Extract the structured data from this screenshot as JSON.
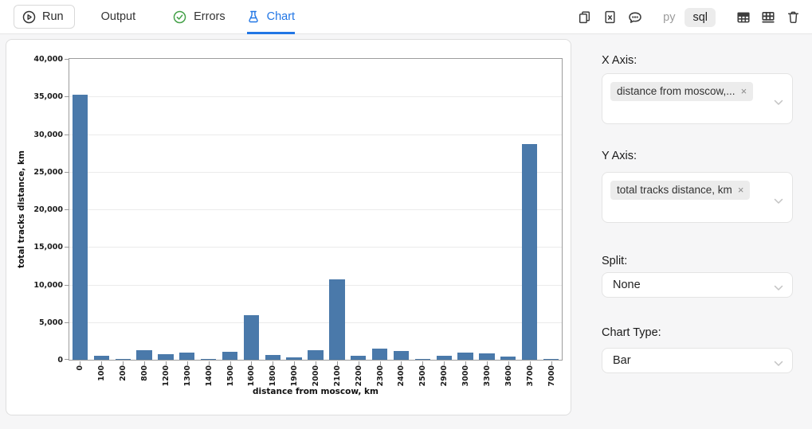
{
  "toolbar": {
    "run": "Run",
    "tabs": {
      "output": "Output",
      "errors": "Errors",
      "chart": "Chart"
    },
    "lang": {
      "py": "py",
      "sql": "sql",
      "active": "sql"
    },
    "icons": [
      "copy-icon",
      "file-x-icon",
      "comment-icon",
      "table-header-icon",
      "table-grid-icon",
      "trash-icon"
    ]
  },
  "sidebar": {
    "x_axis_label": "X Axis:",
    "x_axis_tag": "distance from moscow,...",
    "y_axis_label": "Y Axis:",
    "y_axis_tag": "total tracks distance, km",
    "tag_remove": "×",
    "split_label": "Split:",
    "split_value": "None",
    "chart_type_label": "Chart Type:",
    "chart_type_value": "Bar"
  },
  "chart_data": {
    "type": "bar",
    "title": "",
    "xlabel": "distance from moscow, km",
    "ylabel": "total tracks distance, km",
    "categories": [
      "0",
      "100",
      "200",
      "800",
      "1200",
      "1300",
      "1400",
      "1500",
      "1600",
      "1800",
      "1900",
      "2000",
      "2100",
      "2200",
      "2300",
      "2400",
      "2500",
      "2900",
      "3000",
      "3300",
      "3600",
      "3700",
      "7000"
    ],
    "values": [
      35200,
      550,
      30,
      1250,
      750,
      1000,
      100,
      1100,
      5900,
      600,
      300,
      1300,
      10650,
      550,
      1500,
      1150,
      150,
      550,
      950,
      900,
      450,
      28700,
      150
    ],
    "ylim": [
      0,
      40000
    ],
    "ytick_step": 5000,
    "grid": true,
    "legend": "none",
    "bar_color": "#4a79aa"
  },
  "colors": {
    "accent": "#2176e5",
    "success": "#43a047",
    "bar": "#4a79aa",
    "icon_color": "#3d3d3d",
    "sidebar_bg": "#f6f6f7",
    "card_border": "#dedede",
    "grid_line": "#ebebeb",
    "axis_frame": "#9c9c9c",
    "tag_bg": "#ececec"
  }
}
